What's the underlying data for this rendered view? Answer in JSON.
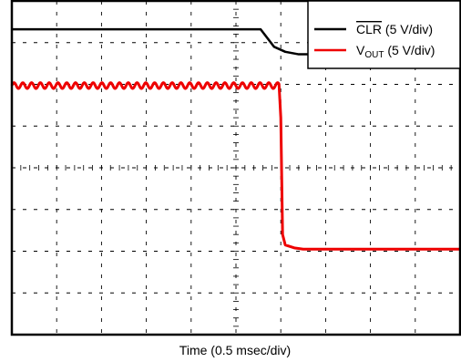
{
  "chart_data": {
    "type": "line",
    "title": "",
    "xlabel": "Time (0.5 msec/div)",
    "ylabel": "",
    "grid": true,
    "x_divisions": 10,
    "y_divisions": 8,
    "xlim": [
      0,
      10
    ],
    "ylim": [
      0,
      8
    ],
    "legend_position": "top-right",
    "series": [
      {
        "name": "CLR (5 V/div)",
        "name_overline": "CLR",
        "name_suffix": " (5 V/div)",
        "color": "#000000",
        "points": [
          [
            0,
            7.32
          ],
          [
            5.55,
            7.32
          ],
          [
            5.85,
            6.9
          ],
          [
            6.1,
            6.78
          ],
          [
            6.4,
            6.72
          ],
          [
            10,
            6.72
          ]
        ]
      },
      {
        "name": "VOUT (5 V/div)",
        "name_main": "V",
        "name_sub": "OUT",
        "name_suffix": " (5 V/div)",
        "color": "#ee0000",
        "ripple_level": 5.97,
        "ripple_amplitude": 0.07,
        "ripple_period": 0.196,
        "points": [
          [
            0,
            5.97
          ],
          [
            5.96,
            5.97
          ],
          [
            6.0,
            5.2
          ],
          [
            6.04,
            2.4
          ],
          [
            6.1,
            2.15
          ],
          [
            6.3,
            2.08
          ],
          [
            6.5,
            2.05
          ],
          [
            10,
            2.05
          ]
        ]
      }
    ]
  }
}
